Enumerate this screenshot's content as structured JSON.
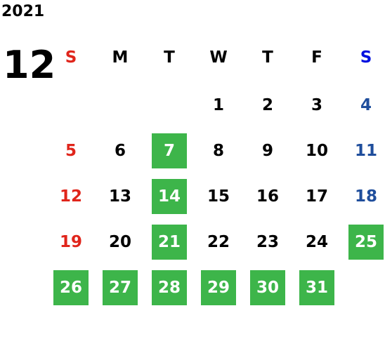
{
  "year": "2021",
  "month": "12",
  "weekdays": [
    "S",
    "M",
    "T",
    "W",
    "T",
    "F",
    "S"
  ],
  "weeks": [
    [
      null,
      null,
      null,
      {
        "day": 1,
        "marked": false
      },
      {
        "day": 2,
        "marked": false
      },
      {
        "day": 3,
        "marked": false
      },
      {
        "day": 4,
        "marked": false
      }
    ],
    [
      {
        "day": 5,
        "marked": false
      },
      {
        "day": 6,
        "marked": false
      },
      {
        "day": 7,
        "marked": true
      },
      {
        "day": 8,
        "marked": false
      },
      {
        "day": 9,
        "marked": false
      },
      {
        "day": 10,
        "marked": false
      },
      {
        "day": 11,
        "marked": false
      }
    ],
    [
      {
        "day": 12,
        "marked": false
      },
      {
        "day": 13,
        "marked": false
      },
      {
        "day": 14,
        "marked": true
      },
      {
        "day": 15,
        "marked": false
      },
      {
        "day": 16,
        "marked": false
      },
      {
        "day": 17,
        "marked": false
      },
      {
        "day": 18,
        "marked": false
      }
    ],
    [
      {
        "day": 19,
        "marked": false
      },
      {
        "day": 20,
        "marked": false
      },
      {
        "day": 21,
        "marked": true
      },
      {
        "day": 22,
        "marked": false
      },
      {
        "day": 23,
        "marked": false
      },
      {
        "day": 24,
        "marked": false
      },
      {
        "day": 25,
        "marked": true
      }
    ],
    [
      {
        "day": 26,
        "marked": true
      },
      {
        "day": 27,
        "marked": true
      },
      {
        "day": 28,
        "marked": true
      },
      {
        "day": 29,
        "marked": true
      },
      {
        "day": 30,
        "marked": true
      },
      {
        "day": 31,
        "marked": true
      },
      null
    ]
  ]
}
